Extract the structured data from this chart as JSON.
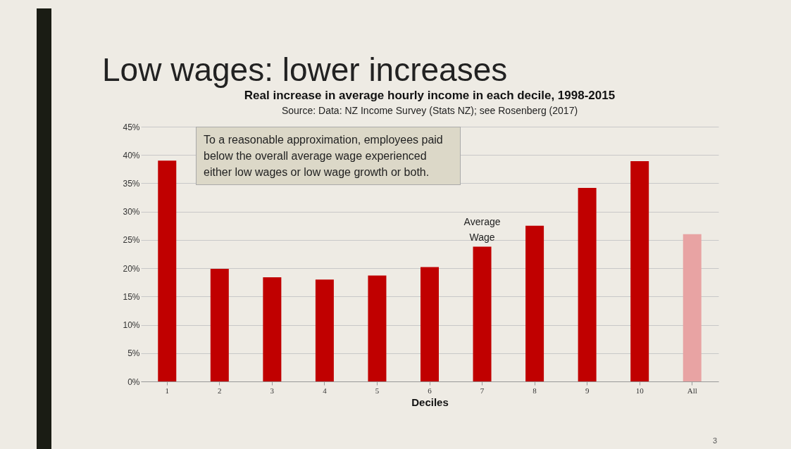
{
  "chart_data": {
    "type": "bar",
    "title": "Low wages: lower increases",
    "subtitle": "Real increase in average hourly income in each decile, 1998-2015",
    "xlabel": "Deciles",
    "categories": [
      "1",
      "2",
      "3",
      "4",
      "5",
      "6",
      "7",
      "8",
      "9",
      "10",
      "All"
    ],
    "values": [
      39.0,
      19.9,
      18.4,
      18.0,
      18.7,
      20.2,
      23.8,
      27.5,
      34.2,
      38.9,
      26.0
    ],
    "colors": [
      "#c00000",
      "#c00000",
      "#c00000",
      "#c00000",
      "#c00000",
      "#c00000",
      "#c00000",
      "#c00000",
      "#c00000",
      "#c00000",
      "#e8a3a3"
    ],
    "ylim": [
      0,
      45
    ],
    "yticks": [
      {
        "value": 0,
        "label": "0%"
      },
      {
        "value": 5,
        "label": "5%"
      },
      {
        "value": 10,
        "label": "10%"
      },
      {
        "value": 15,
        "label": "15%"
      },
      {
        "value": 20,
        "label": "20%"
      },
      {
        "value": 25,
        "label": "25%"
      },
      {
        "value": 30,
        "label": "30%"
      },
      {
        "value": 35,
        "label": "35%"
      },
      {
        "value": 40,
        "label": "40%"
      },
      {
        "value": 45,
        "label": "45%"
      }
    ],
    "grid": "y",
    "legend": false,
    "annotations": [
      "Source: Data: NZ Income Survey (Stats NZ); see Rosenberg (2017)",
      "To a reasonable approximation, employees paid below the overall average wage experienced either low wages or low wage growth or both.",
      {
        "text": "Average Wage",
        "x": "7",
        "y": 23.8
      },
      "3"
    ]
  }
}
